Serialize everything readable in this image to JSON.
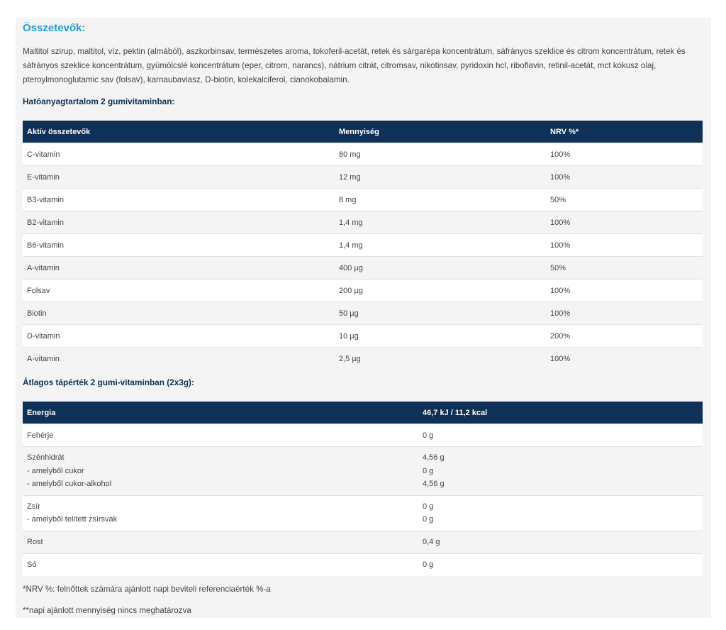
{
  "title": "Összetevők:",
  "ingredients": "Maltitol szirup, maltitol, víz, pektin (almából), aszkorbinsav, természetes aroma, tokoferil-acetát, retek és sárgarépa koncentrátum, sáfrányos szeklice és citrom koncentrátum, retek és sáfrányos szeklice koncentrátum, gyümölcslé koncentrátum (eper, citrom, narancs), nátrium citrát, citromsav, nikotinsav, pyridoxin hcl, riboflavin, retinil-acetát, mct kókusz olaj, pteroylmonoglutamic sav (folsav), karnaubaviasz, D-biotin, kolekalciferol, cianokobalamin.",
  "active_heading": "Hatóanyagtartalom 2 gumivitaminban:",
  "active_table": {
    "headers": [
      "Aktív összetevők",
      "Mennyiség",
      "NRV %*"
    ],
    "rows": [
      [
        "C-vitamin",
        "80 mg",
        "100%"
      ],
      [
        "E-vitamin",
        "12 mg",
        "100%"
      ],
      [
        "B3-vitamin",
        "8 mg",
        "50%"
      ],
      [
        "B2-vitamin",
        "1,4 mg",
        "100%"
      ],
      [
        "B6-vitamin",
        "1,4 mg",
        "100%"
      ],
      [
        "A-vitamin",
        "400 µg",
        "50%"
      ],
      [
        "Folsav",
        "200 µg",
        "100%"
      ],
      [
        "Biotin",
        "50 µg",
        "100%"
      ],
      [
        "D-vitamin",
        "10 µg",
        "200%"
      ],
      [
        "A-vitamin",
        "2,5 µg",
        "100%"
      ]
    ]
  },
  "nutrition_heading": "Átlagos tápérték 2 gumi-vitaminban (2x3g):",
  "nutrition_table": {
    "headers": [
      "Energia",
      "46,7 kJ / 11,2 kcal"
    ],
    "rows": [
      {
        "labels": [
          "Fehérje"
        ],
        "values": [
          "0 g"
        ]
      },
      {
        "labels": [
          "Szénhidrát",
          "- amelyből cukor",
          "- amelyből cukor-alkohol"
        ],
        "values": [
          "4,56 g",
          "0 g",
          "4,56 g"
        ]
      },
      {
        "labels": [
          "Zsír",
          "- amelyből telített zsírsvak"
        ],
        "values": [
          "0 g",
          "0 g"
        ]
      },
      {
        "labels": [
          "Rost"
        ],
        "values": [
          "0,4 g"
        ]
      },
      {
        "labels": [
          "Só"
        ],
        "values": [
          "0 g"
        ]
      }
    ]
  },
  "note1": "*NRV %: felnőttek számára ajánlott napi beviteli referenciaérték %-a",
  "note2": "**napi ajánlott mennyiség nincs meghatározva"
}
